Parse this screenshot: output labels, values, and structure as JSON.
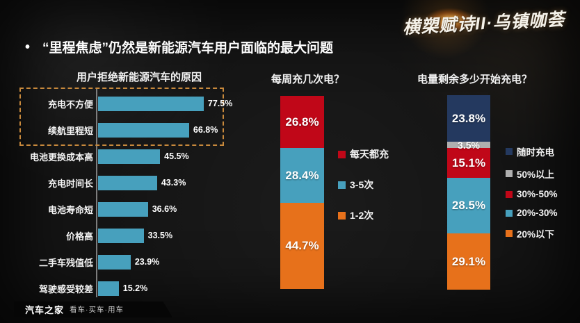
{
  "watermark": {
    "text": "横槊赋诗II·乌镇咖荟"
  },
  "header": {
    "bullet": "•",
    "title": "“里程焦虑”仍然是新能源汽车用户面临的最大问题"
  },
  "footer": {
    "brand": "汽车之家",
    "tagline": "看车·买车·用车"
  },
  "colors": {
    "bar_teal": "#47a0bd",
    "red": "#c00718",
    "orange": "#e7711b",
    "navy": "#24395f",
    "gray": "#afafaf",
    "highlight_box": "#c8893c",
    "axis": "#8f8f8f"
  },
  "chart_data": [
    {
      "type": "bar",
      "orientation": "horizontal",
      "title": "用户拒绝新能源汽车的原因",
      "categories": [
        "充电不方便",
        "续航里程短",
        "电池更换成本高",
        "充电时间长",
        "电池寿命短",
        "价格高",
        "二手车残值低",
        "驾驶感受较差"
      ],
      "values": [
        77.5,
        66.8,
        45.5,
        43.3,
        36.6,
        33.5,
        23.9,
        15.2
      ],
      "value_suffix": "%",
      "bar_color": "#47a0bd",
      "xlim": [
        0,
        100
      ],
      "grid": false,
      "highlighted_categories": [
        "充电不方便",
        "续航里程短"
      ]
    },
    {
      "type": "bar",
      "subtype": "stacked-column",
      "title": "每周充几次电？",
      "value_suffix": "%",
      "legend_position": "right",
      "segments": [
        {
          "label": "每天都充",
          "value": 26.8,
          "color": "#c00718"
        },
        {
          "label": "3-5次",
          "value": 28.4,
          "color": "#47a0bd"
        },
        {
          "label": "1-2次",
          "value": 44.7,
          "color": "#e7711b"
        }
      ]
    },
    {
      "type": "bar",
      "subtype": "stacked-column",
      "title": "电量剩余多少开始充电？",
      "value_suffix": "%",
      "legend_position": "right",
      "segments": [
        {
          "label": "随时充电",
          "value": 23.8,
          "color": "#24395f"
        },
        {
          "label": "50%以上",
          "value": 3.5,
          "color": "#afafaf"
        },
        {
          "label": "30%-50%",
          "value": 15.1,
          "color": "#c00718"
        },
        {
          "label": "20%-30%",
          "value": 28.5,
          "color": "#47a0bd"
        },
        {
          "label": "20%以下",
          "value": 29.1,
          "color": "#e7711b"
        }
      ]
    }
  ]
}
